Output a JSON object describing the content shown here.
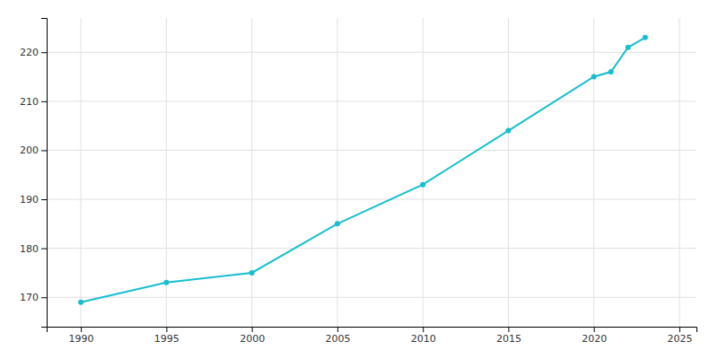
{
  "chart_data": {
    "type": "line",
    "x": [
      1990,
      1995,
      2000,
      2005,
      2010,
      2015,
      2020,
      2021,
      2022,
      2023
    ],
    "values": [
      169,
      173,
      175,
      185,
      193,
      204,
      215,
      216,
      221,
      223
    ],
    "color": "#17BECF",
    "marker": "circle",
    "xlim": [
      1988,
      2026
    ],
    "ylim": [
      164,
      227
    ],
    "xticks": [
      1990,
      1995,
      2000,
      2005,
      2010,
      2015,
      2020,
      2025
    ],
    "yticks": [
      170,
      180,
      190,
      200,
      210,
      220
    ],
    "grid": true
  }
}
